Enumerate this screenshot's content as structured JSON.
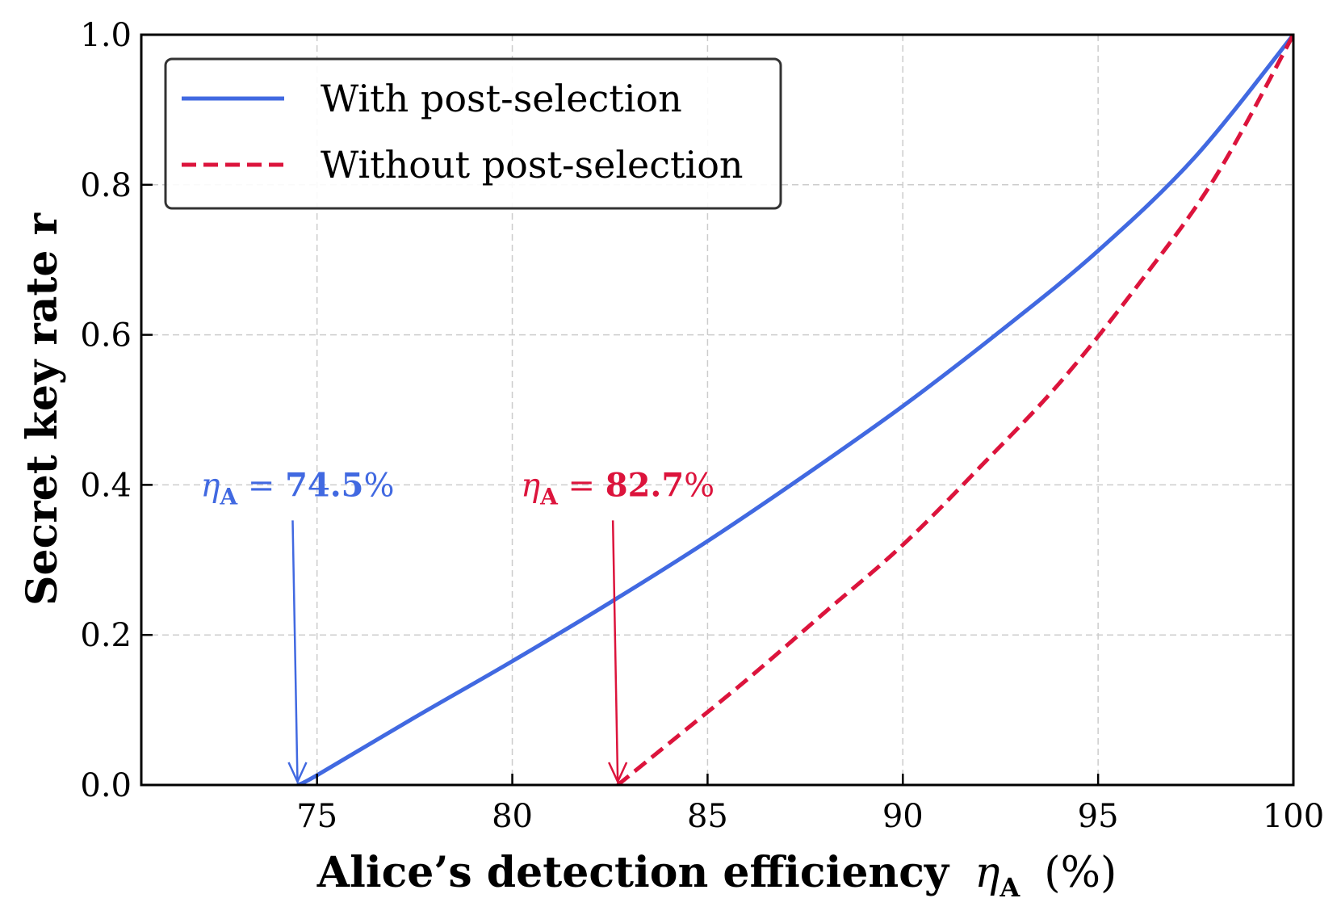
{
  "chart_data": {
    "type": "line",
    "xlabel": "Alice’s detection efficiency",
    "xlabel_symbol": "η",
    "xlabel_subscript": "A",
    "xlabel_unit": "(%)",
    "ylabel": "Secret key rate r",
    "xlim": [
      70.5,
      100
    ],
    "ylim": [
      0,
      1
    ],
    "xticks": [
      75,
      80,
      85,
      90,
      95,
      100
    ],
    "yticks": [
      0.0,
      0.2,
      0.4,
      0.6,
      0.8,
      1.0
    ],
    "xtick_labels": [
      "75",
      "80",
      "85",
      "90",
      "95",
      "100"
    ],
    "ytick_labels": [
      "0.0",
      "0.2",
      "0.4",
      "0.6",
      "0.8",
      "1.0"
    ],
    "grid": true,
    "legend_position": "top-left",
    "series": [
      {
        "name": "With post-selection",
        "color": "#4169e1",
        "style": "solid",
        "x": [
          74.5,
          75,
          77.5,
          80,
          82.5,
          85,
          87.5,
          90,
          92.5,
          95,
          97.5,
          100
        ],
        "y": [
          0.0,
          0.013,
          0.09,
          0.165,
          0.243,
          0.325,
          0.413,
          0.505,
          0.605,
          0.712,
          0.838,
          1.0
        ]
      },
      {
        "name": "Without post-selection",
        "color": "#dc143c",
        "style": "dashed",
        "x": [
          82.7,
          84,
          86,
          88,
          90,
          92,
          94,
          96,
          98,
          100
        ],
        "y": [
          0.0,
          0.055,
          0.14,
          0.23,
          0.32,
          0.425,
          0.535,
          0.665,
          0.81,
          1.0
        ]
      }
    ],
    "annotations": [
      {
        "symbol": "η",
        "subscript": "A",
        "eq": " = ",
        "value": "74.5",
        "percent": "%",
        "x": 74.5,
        "label_y": 0.4,
        "color": "#4169e1"
      },
      {
        "symbol": "η",
        "subscript": "A",
        "eq": " = ",
        "value": "82.7",
        "percent": "%",
        "x": 82.7,
        "label_y": 0.4,
        "color": "#dc143c"
      }
    ]
  }
}
